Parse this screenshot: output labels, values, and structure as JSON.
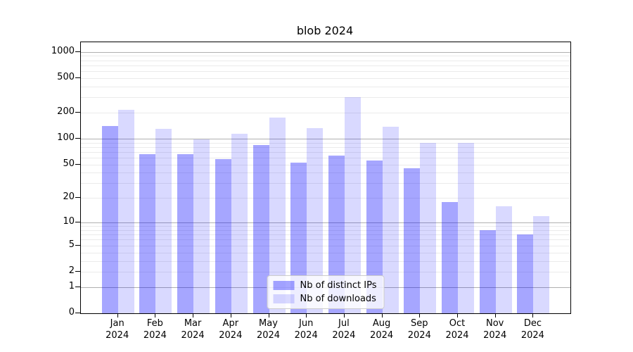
{
  "title": "blob 2024",
  "chart_data": {
    "type": "bar",
    "title": "blob 2024",
    "categories": [
      "Jan",
      "Feb",
      "Mar",
      "Apr",
      "May",
      "Jun",
      "Jul",
      "Aug",
      "Sep",
      "Oct",
      "Nov",
      "Dec"
    ],
    "year_label": "2024",
    "series": [
      {
        "name": "Nb of distinct IPs",
        "color": "#0000ff",
        "alpha": 0.35,
        "values": [
          140,
          66,
          66,
          58,
          85,
          53,
          64,
          56,
          45,
          18,
          8,
          7
        ]
      },
      {
        "name": "Nb of downloads",
        "color": "#0000ff",
        "alpha": 0.15,
        "values": [
          215,
          130,
          98,
          115,
          175,
          133,
          300,
          138,
          89,
          90,
          16,
          12
        ]
      }
    ],
    "xlabel": "",
    "ylabel": "",
    "y_scale": "log1p",
    "y_ticks": [
      0,
      1,
      2,
      5,
      10,
      20,
      50,
      100,
      200,
      500,
      1000
    ],
    "y_max": 1290,
    "grid": {
      "major_lines": [
        1,
        10,
        100,
        1000
      ],
      "minor_mantissas": [
        2,
        3,
        4,
        5,
        6,
        7,
        8,
        9
      ],
      "major_color": "#b0b0b0",
      "minor_color": "#ebebeb"
    },
    "legend_position": "lower center"
  }
}
